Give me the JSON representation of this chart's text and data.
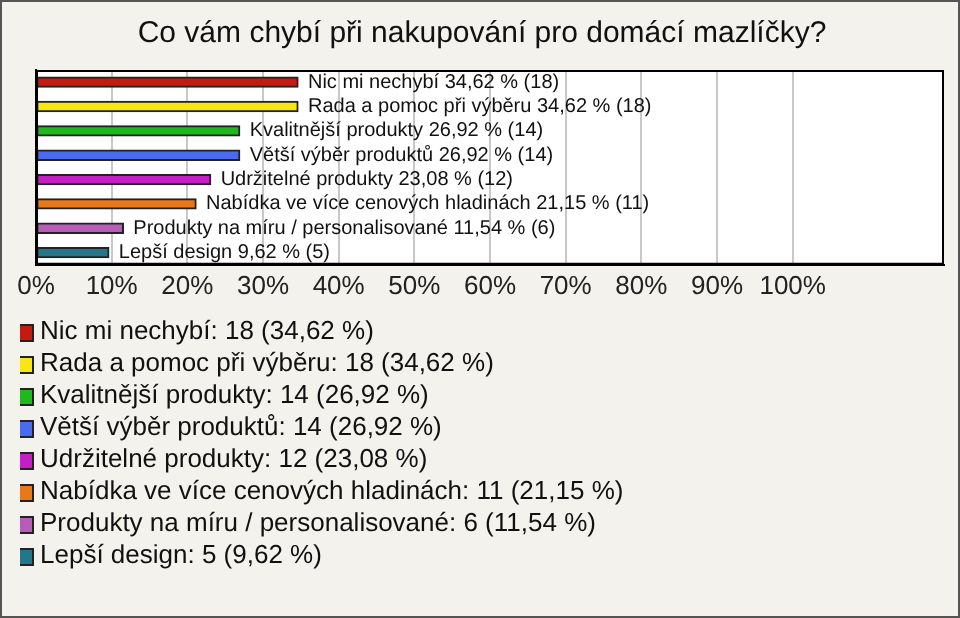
{
  "chart_data": {
    "type": "bar",
    "orientation": "horizontal",
    "title": "Co vám chybí při nakupování pro domácí mazlíčky?",
    "categories": [
      null,
      null,
      null,
      null,
      null,
      null,
      null,
      null
    ],
    "series": [
      {
        "name": "Nic mi nechybí: 18 (34,62 %)",
        "color": "#c41a10",
        "values": [
          34.62,
          null,
          null,
          null,
          null,
          null,
          null,
          null
        ],
        "value_labels": [
          "Nic mi nechybí 34,62 % (18)",
          null,
          null,
          null,
          null,
          null,
          null,
          null
        ]
      },
      {
        "name": "Rada a pomoc při výběru: 18 (34,62 %)",
        "color": "#f5e614",
        "values": [
          null,
          34.62,
          null,
          null,
          null,
          null,
          null,
          null
        ],
        "value_labels": [
          null,
          "Rada a pomoc při výběru 34,62 % (18)",
          null,
          null,
          null,
          null,
          null,
          null
        ]
      },
      {
        "name": "Kvalitnější produkty: 14 (26,92 %)",
        "color": "#1fb81f",
        "values": [
          null,
          null,
          26.92,
          null,
          null,
          null,
          null,
          null
        ],
        "value_labels": [
          null,
          null,
          "Kvalitnější produkty 26,92 % (14)",
          null,
          null,
          null,
          null,
          null
        ]
      },
      {
        "name": "Větší výběr produktů: 14 (26,92 %)",
        "color": "#4a6bef",
        "values": [
          null,
          null,
          null,
          26.92,
          null,
          null,
          null,
          null
        ],
        "value_labels": [
          null,
          null,
          null,
          "Větší výběr produktů 26,92 % (14)",
          null,
          null,
          null,
          null
        ]
      },
      {
        "name": "Udržitelné produkty: 12 (23,08 %)",
        "color": "#c41fc4",
        "values": [
          null,
          null,
          null,
          null,
          23.08,
          null,
          null,
          null
        ],
        "value_labels": [
          null,
          null,
          null,
          null,
          "Udržitelné produkty 23,08 % (12)",
          null,
          null,
          null
        ]
      },
      {
        "name": "Nabídka ve více cenových hladinách: 11 (21,15 %)",
        "color": "#e8781a",
        "values": [
          null,
          null,
          null,
          null,
          null,
          21.15,
          null,
          null
        ],
        "value_labels": [
          null,
          null,
          null,
          null,
          null,
          "Nabídka ve více cenových hladinách 21,15 % (11)",
          null,
          null
        ]
      },
      {
        "name": "Produkty na míru / personalisované: 6 (11,54 %)",
        "color": "#b85cb8",
        "values": [
          null,
          null,
          null,
          null,
          null,
          null,
          11.54,
          null
        ],
        "value_labels": [
          null,
          null,
          null,
          null,
          null,
          null,
          "Produkty na míru / personalisované 11,54 % (6)",
          null
        ]
      },
      {
        "name": "Lepší design: 5 (9,62 %)",
        "color": "#22788a",
        "values": [
          null,
          null,
          null,
          null,
          null,
          null,
          null,
          9.62
        ],
        "value_labels": [
          null,
          null,
          null,
          null,
          null,
          null,
          null,
          "Lepší design 9,62 % (5)"
        ]
      }
    ],
    "xlim": [
      0,
      120
    ],
    "xticks": [
      {
        "value": 0,
        "label": "0%"
      },
      {
        "value": 10,
        "label": "10%"
      },
      {
        "value": 20,
        "label": "20%"
      },
      {
        "value": 30,
        "label": "30%"
      },
      {
        "value": 40,
        "label": "40%"
      },
      {
        "value": 50,
        "label": "50%"
      },
      {
        "value": 60,
        "label": "60%"
      },
      {
        "value": 70,
        "label": "70%"
      },
      {
        "value": 80,
        "label": "80%"
      },
      {
        "value": 90,
        "label": "90%"
      },
      {
        "value": 100,
        "label": "100%"
      }
    ],
    "grid": "x",
    "legend": "bottom",
    "tick_labels": "x"
  }
}
